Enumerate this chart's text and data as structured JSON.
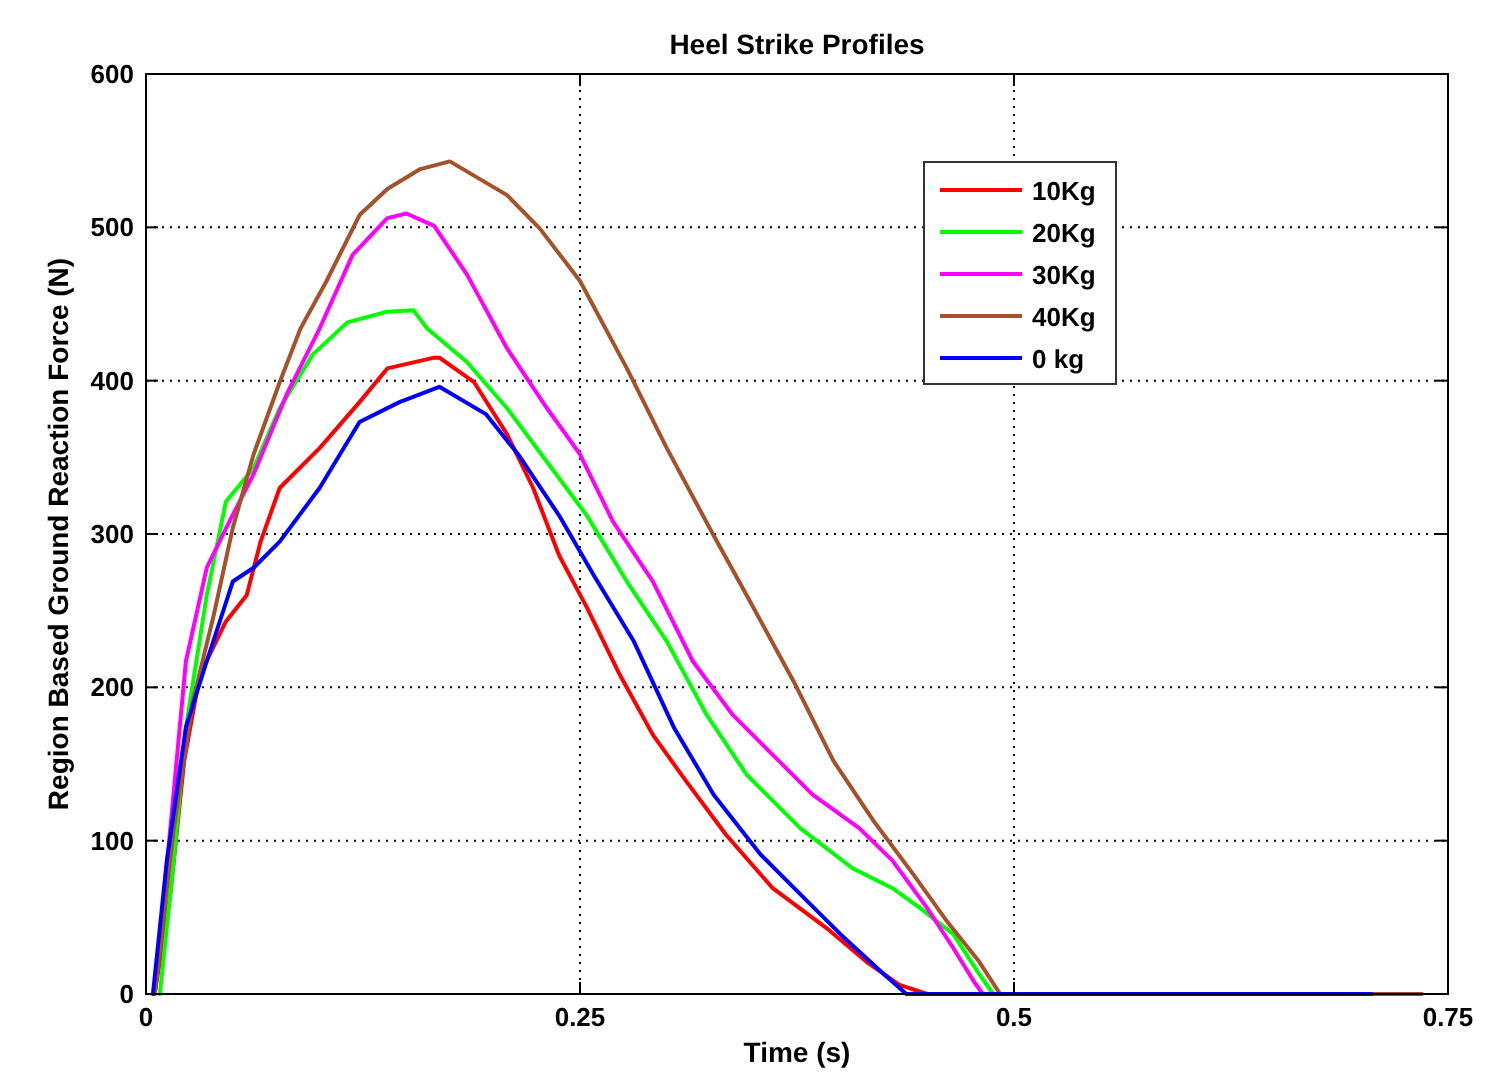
{
  "chart_data": {
    "type": "line",
    "title": "Heel Strike Profiles",
    "xlabel": "Time (s)",
    "ylabel": "Region Based Ground Reaction Force (N)",
    "xlim": [
      0,
      0.75
    ],
    "ylim": [
      0,
      600
    ],
    "xticks": [
      0,
      0.25,
      0.5,
      0.75
    ],
    "yticks": [
      0,
      100,
      200,
      300,
      400,
      500,
      600
    ],
    "grid": true,
    "legend": "top right",
    "line_style": "solid",
    "marker": "none",
    "series": [
      {
        "name": "10Kg",
        "color": "#ff0000",
        "x": [
          0.005,
          0.014,
          0.022,
          0.031,
          0.046,
          0.058,
          0.066,
          0.077,
          0.1,
          0.123,
          0.139,
          0.166,
          0.169,
          0.189,
          0.208,
          0.223,
          0.238,
          0.254,
          0.273,
          0.292,
          0.311,
          0.334,
          0.361,
          0.392,
          0.415,
          0.434,
          0.45,
          0.706
        ],
        "values": [
          0,
          65,
          152,
          208,
          243,
          260,
          295,
          330,
          356,
          386,
          408,
          415,
          415,
          399,
          365,
          330,
          286,
          252,
          208,
          169,
          139,
          104,
          69,
          43,
          21,
          6,
          0,
          0
        ]
      },
      {
        "name": "20Kg",
        "color": "#00ff00",
        "x": [
          0.008,
          0.016,
          0.023,
          0.035,
          0.046,
          0.062,
          0.077,
          0.096,
          0.116,
          0.139,
          0.154,
          0.162,
          0.185,
          0.208,
          0.231,
          0.254,
          0.277,
          0.3,
          0.323,
          0.346,
          0.377,
          0.407,
          0.43,
          0.446,
          0.465,
          0.48,
          0.488,
          0.706
        ],
        "values": [
          0,
          87,
          174,
          260,
          321,
          343,
          382,
          417,
          438,
          445,
          446,
          434,
          412,
          382,
          347,
          312,
          269,
          230,
          182,
          143,
          108,
          82,
          69,
          56,
          39,
          13,
          0,
          0
        ]
      },
      {
        "name": "30Kg",
        "color": "#ff00ff",
        "x": [
          0.005,
          0.014,
          0.023,
          0.035,
          0.048,
          0.062,
          0.081,
          0.1,
          0.119,
          0.139,
          0.15,
          0.166,
          0.185,
          0.208,
          0.231,
          0.25,
          0.269,
          0.292,
          0.315,
          0.338,
          0.361,
          0.384,
          0.411,
          0.43,
          0.45,
          0.465,
          0.477,
          0.482,
          0.706
        ],
        "values": [
          0,
          108,
          217,
          278,
          308,
          339,
          391,
          434,
          482,
          506,
          509,
          501,
          469,
          421,
          382,
          352,
          308,
          269,
          217,
          182,
          156,
          130,
          108,
          87,
          56,
          30,
          8,
          0,
          0
        ]
      },
      {
        "name": "40Kg",
        "color": "#a5522a",
        "x": [
          0.005,
          0.016,
          0.027,
          0.039,
          0.05,
          0.062,
          0.077,
          0.089,
          0.104,
          0.123,
          0.139,
          0.158,
          0.175,
          0.208,
          0.227,
          0.25,
          0.277,
          0.3,
          0.327,
          0.346,
          0.373,
          0.396,
          0.419,
          0.442,
          0.461,
          0.48,
          0.492,
          0.735
        ],
        "values": [
          0,
          108,
          191,
          247,
          304,
          352,
          399,
          434,
          465,
          508,
          525,
          538,
          543,
          521,
          499,
          465,
          408,
          356,
          299,
          260,
          204,
          152,
          113,
          78,
          48,
          21,
          0,
          0
        ]
      },
      {
        "name": "0 kg",
        "color": "#0000ff",
        "x": [
          0.004,
          0.012,
          0.023,
          0.035,
          0.05,
          0.062,
          0.077,
          0.1,
          0.123,
          0.146,
          0.169,
          0.196,
          0.215,
          0.238,
          0.258,
          0.281,
          0.304,
          0.327,
          0.354,
          0.377,
          0.4,
          0.423,
          0.438,
          0.706
        ],
        "values": [
          0,
          87,
          174,
          217,
          269,
          278,
          295,
          330,
          373,
          386,
          396,
          378,
          351,
          312,
          273,
          230,
          174,
          130,
          91,
          65,
          39,
          15,
          0,
          0
        ]
      }
    ]
  }
}
